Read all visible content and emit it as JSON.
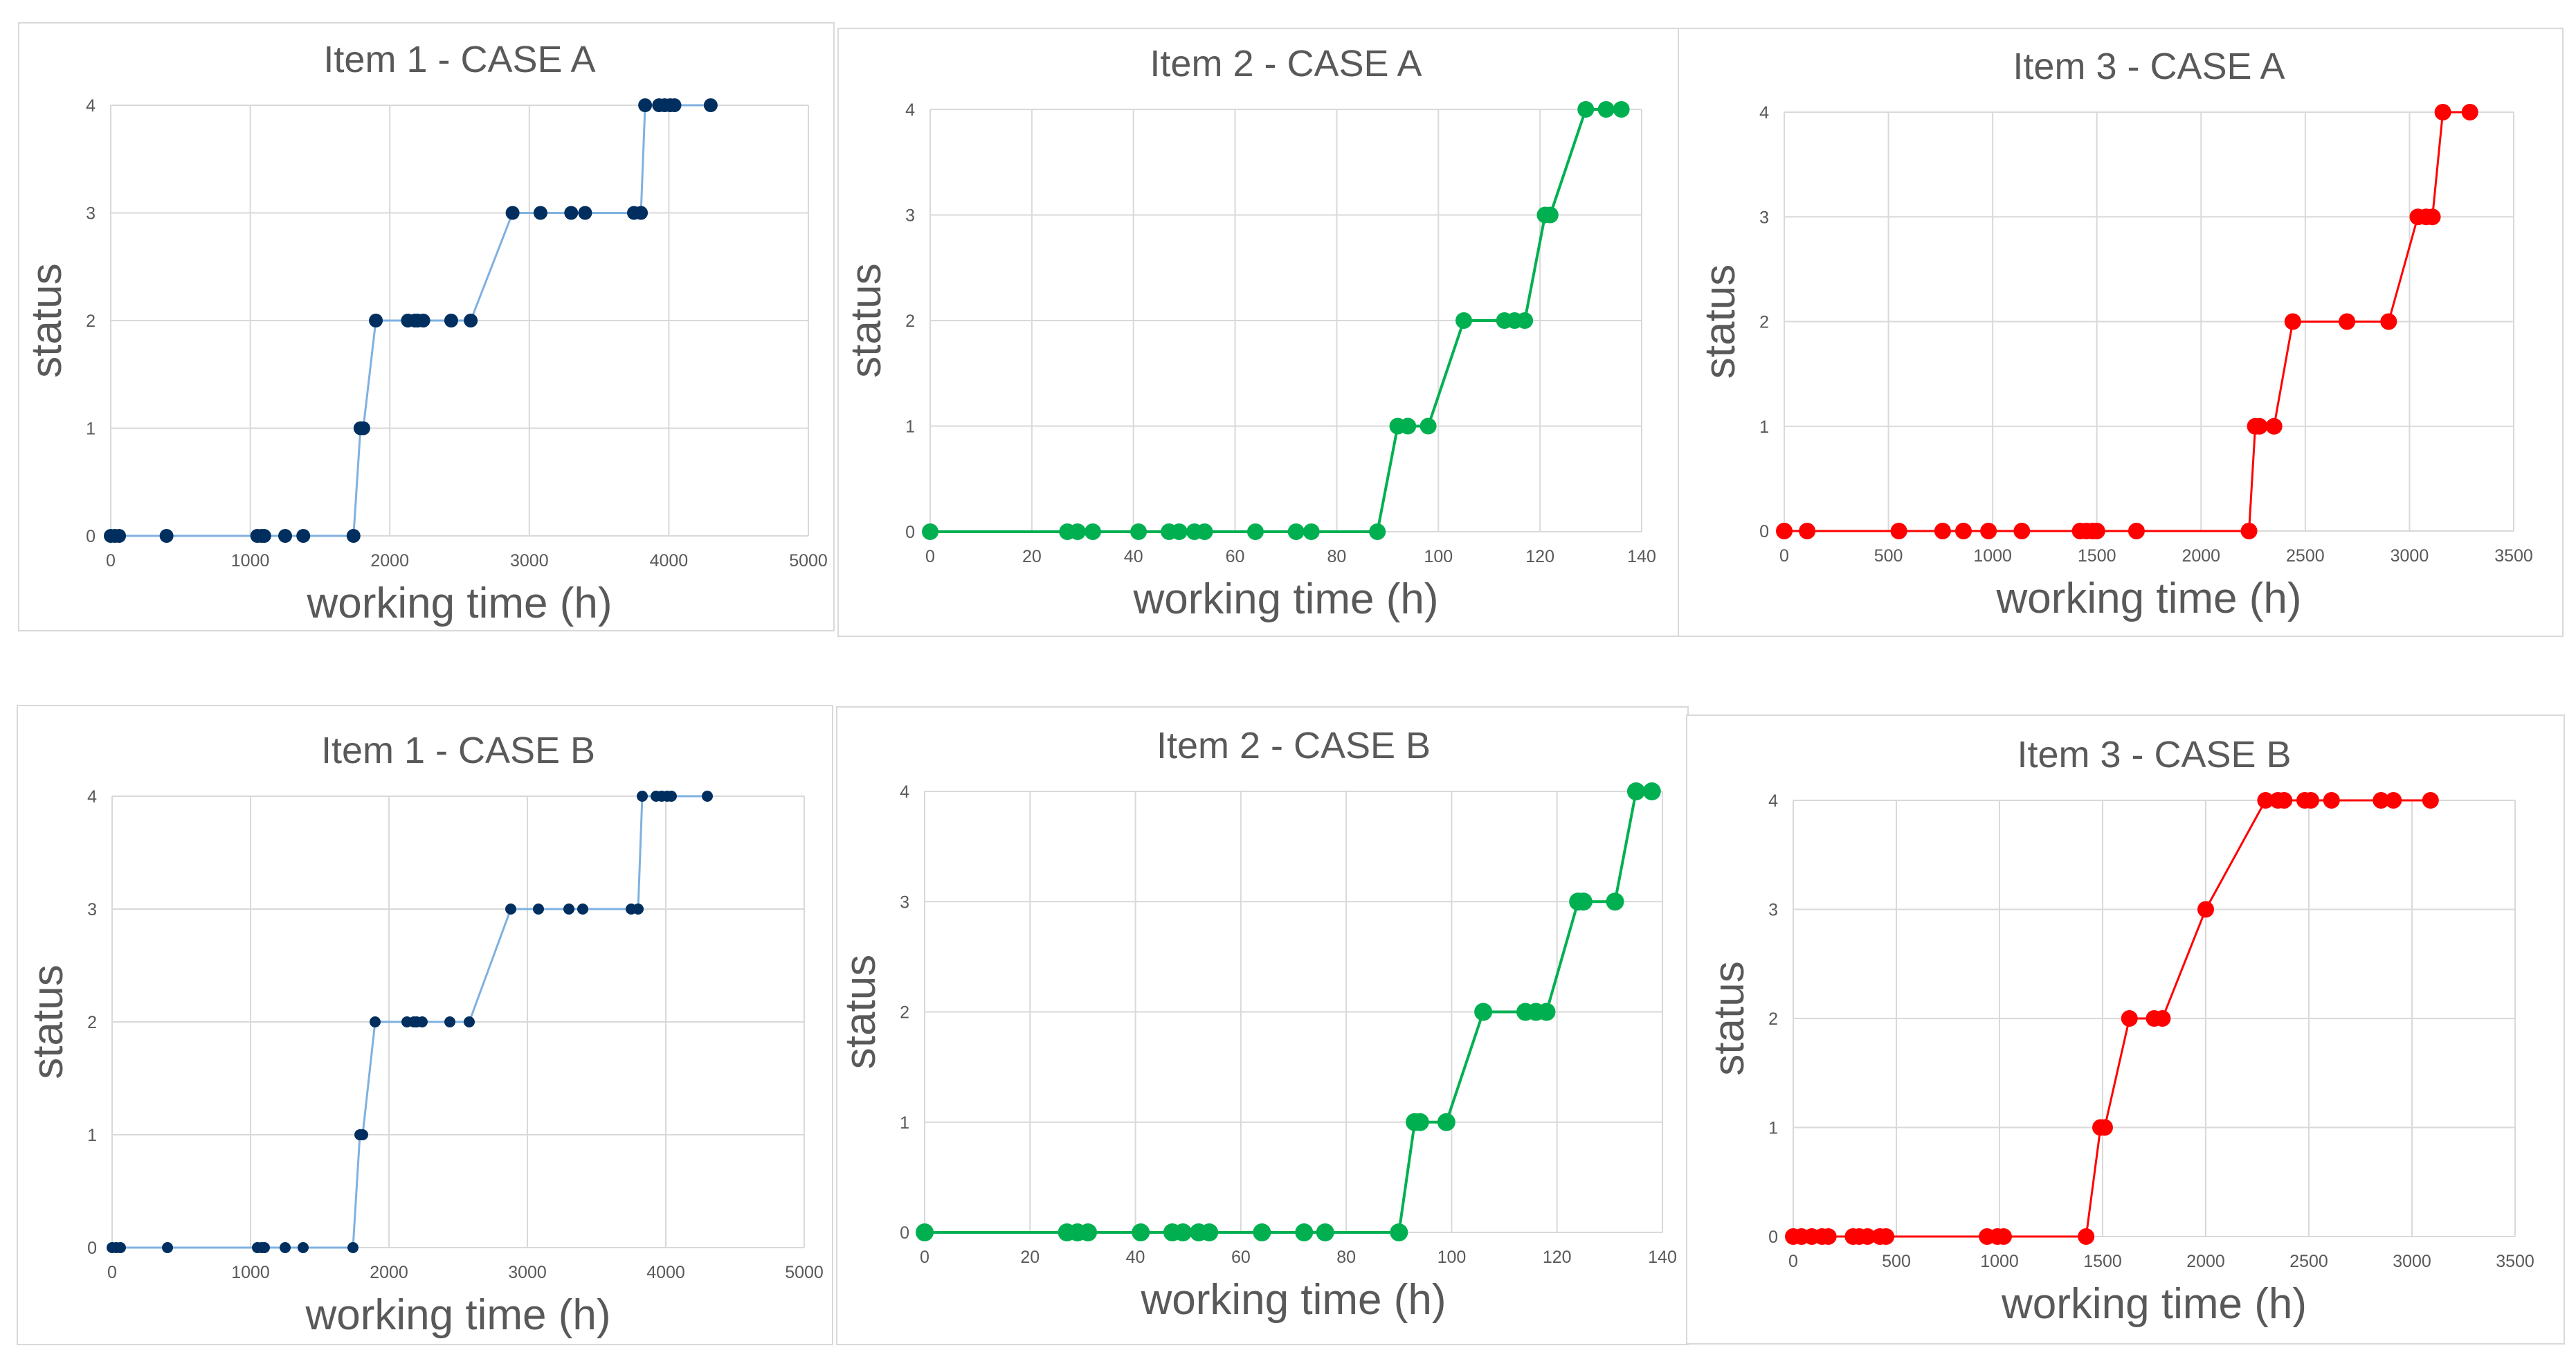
{
  "chart_data": [
    {
      "type": "line",
      "title": "Item 1 - CASE A",
      "xlabel": "working time (h)",
      "ylabel": "status",
      "xlim": [
        0,
        5000
      ],
      "ylim": [
        0,
        4
      ],
      "xticks": [
        0,
        1000,
        2000,
        3000,
        4000,
        5000
      ],
      "yticks": [
        0,
        1,
        2,
        3,
        4
      ],
      "color": "#002f5f",
      "line_color": "#7fb1e0",
      "series": [
        {
          "name": "Item 1",
          "x": [
            0,
            30,
            60,
            400,
            1050,
            1080,
            1100,
            1250,
            1380,
            1740,
            1790,
            1810,
            1900,
            2130,
            2180,
            2200,
            2240,
            2440,
            2580,
            2880,
            3080,
            3300,
            3400,
            3750,
            3800,
            3830,
            3930,
            3970,
            4010,
            4040,
            4300
          ],
          "y": [
            0,
            0,
            0,
            0,
            0,
            0,
            0,
            0,
            0,
            0,
            1,
            1,
            2,
            2,
            2,
            2,
            2,
            2,
            2,
            3,
            3,
            3,
            3,
            3,
            3,
            4,
            4,
            4,
            4,
            4,
            4
          ]
        }
      ]
    },
    {
      "type": "line",
      "title": "Item 2 - CASE A",
      "xlabel": "working time (h)",
      "ylabel": "status",
      "xlim": [
        0,
        140
      ],
      "ylim": [
        0,
        4
      ],
      "xticks": [
        0,
        20,
        40,
        60,
        80,
        100,
        120,
        140
      ],
      "yticks": [
        0,
        1,
        2,
        3,
        4
      ],
      "color": "#00b050",
      "line_color": "#00b050",
      "series": [
        {
          "name": "Item 2",
          "x": [
            0,
            27,
            29,
            32,
            41,
            47,
            49,
            52,
            54,
            64,
            72,
            75,
            88,
            92,
            94,
            98,
            105,
            113,
            115,
            117,
            121,
            122,
            129,
            133,
            136
          ],
          "y": [
            0,
            0,
            0,
            0,
            0,
            0,
            0,
            0,
            0,
            0,
            0,
            0,
            0,
            1,
            1,
            1,
            2,
            2,
            2,
            2,
            3,
            3,
            4,
            4,
            4
          ]
        }
      ]
    },
    {
      "type": "line",
      "title": "Item 3 - CASE A",
      "xlabel": "working time (h)",
      "ylabel": "status",
      "xlim": [
        0,
        3500
      ],
      "ylim": [
        0,
        4
      ],
      "xticks": [
        0,
        500,
        1000,
        1500,
        2000,
        2500,
        3000,
        3500
      ],
      "yticks": [
        0,
        1,
        2,
        3,
        4
      ],
      "color": "#ff0000",
      "line_color": "#ff0000",
      "series": [
        {
          "name": "Item 3",
          "x": [
            0,
            110,
            550,
            760,
            860,
            980,
            1140,
            1420,
            1450,
            1480,
            1500,
            1690,
            2230,
            2260,
            2280,
            2350,
            2440,
            2700,
            2900,
            3040,
            3080,
            3110,
            3160,
            3290
          ],
          "y": [
            0,
            0,
            0,
            0,
            0,
            0,
            0,
            0,
            0,
            0,
            0,
            0,
            0,
            1,
            1,
            1,
            2,
            2,
            2,
            3,
            3,
            3,
            4,
            4
          ]
        }
      ]
    },
    {
      "type": "line",
      "title": "Item 1 - CASE B",
      "xlabel": "working time (h)",
      "ylabel": "status",
      "xlim": [
        0,
        5000
      ],
      "ylim": [
        0,
        4
      ],
      "xticks": [
        0,
        1000,
        2000,
        3000,
        4000,
        5000
      ],
      "yticks": [
        0,
        1,
        2,
        3,
        4
      ],
      "color": "#002f5f",
      "line_color": "#7fb1e0",
      "series": [
        {
          "name": "Item 1",
          "x": [
            0,
            30,
            60,
            400,
            1050,
            1080,
            1100,
            1250,
            1380,
            1740,
            1790,
            1810,
            1900,
            2130,
            2180,
            2200,
            2240,
            2440,
            2580,
            2880,
            3080,
            3300,
            3400,
            3750,
            3800,
            3830,
            3930,
            3970,
            4010,
            4040,
            4300
          ],
          "y": [
            0,
            0,
            0,
            0,
            0,
            0,
            0,
            0,
            0,
            0,
            1,
            1,
            2,
            2,
            2,
            2,
            2,
            2,
            2,
            3,
            3,
            3,
            3,
            3,
            3,
            4,
            4,
            4,
            4,
            4,
            4
          ]
        }
      ]
    },
    {
      "type": "line",
      "title": "Item 2 - CASE B",
      "xlabel": "working time (h)",
      "ylabel": "status",
      "xlim": [
        0,
        140
      ],
      "ylim": [
        0,
        4
      ],
      "xticks": [
        0,
        20,
        40,
        60,
        80,
        100,
        120,
        140
      ],
      "yticks": [
        0,
        1,
        2,
        3,
        4
      ],
      "color": "#00b050",
      "line_color": "#00b050",
      "series": [
        {
          "name": "Item 2",
          "x": [
            0,
            27,
            29,
            31,
            41,
            47,
            49,
            52,
            54,
            64,
            72,
            76,
            90,
            93,
            94,
            99,
            106,
            114,
            116,
            118,
            124,
            125,
            131,
            135,
            138
          ],
          "y": [
            0,
            0,
            0,
            0,
            0,
            0,
            0,
            0,
            0,
            0,
            0,
            0,
            0,
            1,
            1,
            1,
            2,
            2,
            2,
            2,
            3,
            3,
            3,
            4,
            4
          ]
        }
      ]
    },
    {
      "type": "line",
      "title": "Item 3 - CASE B",
      "xlabel": "working time (h)",
      "ylabel": "status",
      "xlim": [
        0,
        3500
      ],
      "ylim": [
        0,
        4
      ],
      "xticks": [
        0,
        500,
        1000,
        1500,
        2000,
        2500,
        3000,
        3500
      ],
      "yticks": [
        0,
        1,
        2,
        3,
        4
      ],
      "color": "#ff0000",
      "line_color": "#ff0000",
      "series": [
        {
          "name": "Item 3",
          "x": [
            0,
            40,
            90,
            140,
            170,
            290,
            320,
            360,
            420,
            450,
            940,
            990,
            1020,
            1420,
            1490,
            1510,
            1630,
            1750,
            1790,
            2000,
            2290,
            2350,
            2380,
            2480,
            2510,
            2610,
            2850,
            2910,
            3090
          ],
          "y": [
            0,
            0,
            0,
            0,
            0,
            0,
            0,
            0,
            0,
            0,
            0,
            0,
            0,
            0,
            1,
            1,
            2,
            2,
            2,
            3,
            4,
            4,
            4,
            4,
            4,
            4,
            4,
            4,
            4
          ]
        }
      ]
    }
  ]
}
